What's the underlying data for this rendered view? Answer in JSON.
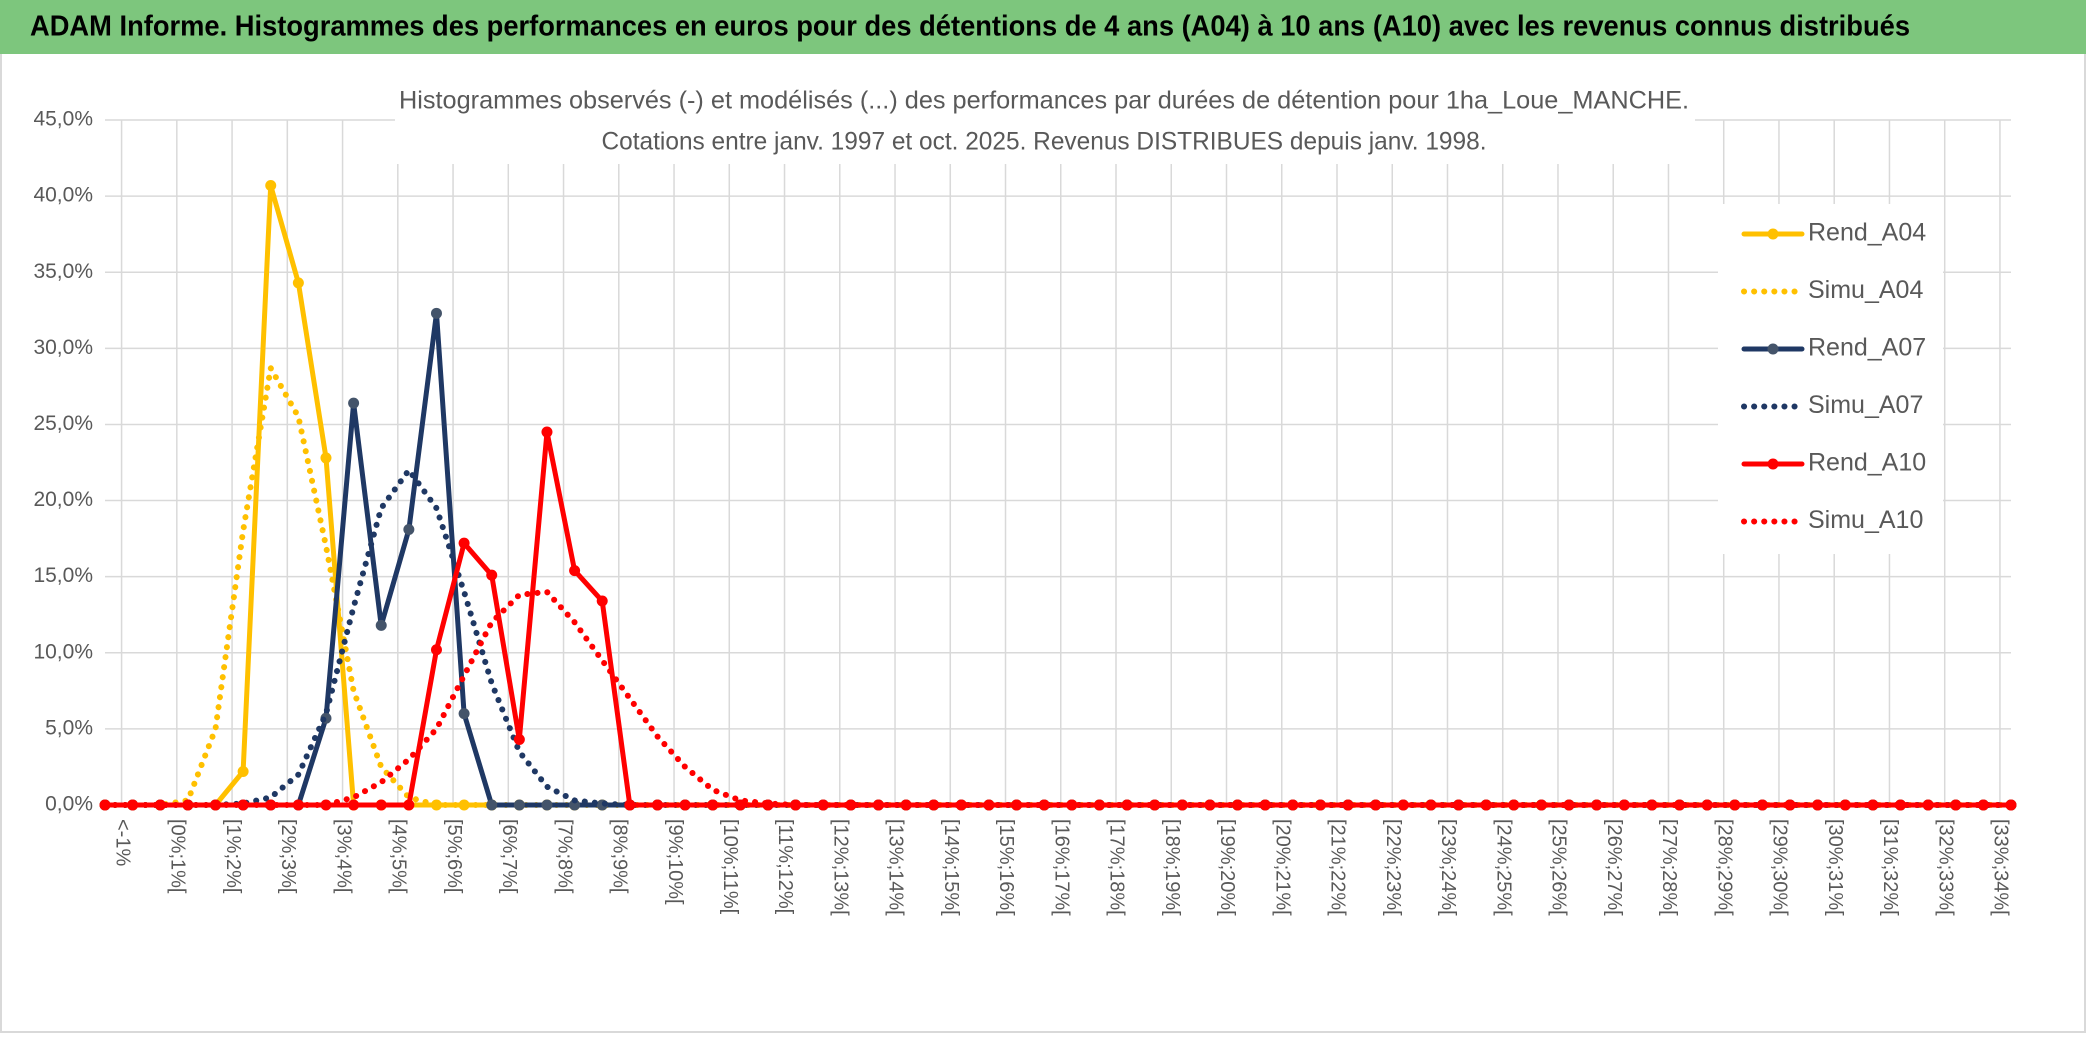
{
  "header": {
    "title": "ADAM Informe. Histogrammes des performances en euros pour des détentions de 4 ans (A04) à 10 ans (A10) avec les revenus connus distribués"
  },
  "chart_data": {
    "type": "line",
    "title": [
      "Histogrammes observés (-) et modélisés (...) des performances par durées de détention pour 1ha_Loue_MANCHE.",
      "Cotations entre janv. 1997 et oct. 2025. Revenus DISTRIBUES depuis janv. 1998."
    ],
    "categories": [
      "<-1%",
      null,
      "[0%;1%[",
      null,
      "[1%;2%[",
      null,
      "[2%;3%[",
      null,
      "[3%;4%[",
      null,
      "[4%;5%[",
      null,
      "[5%;6%[",
      null,
      "[6%;7%[",
      null,
      "[7%;8%[",
      null,
      "[8%;9%[",
      null,
      "[9%;10%[",
      null,
      "[10%;11%[",
      null,
      "[11%;12%[",
      null,
      "[12%;13%[",
      null,
      "[13%;14%[",
      null,
      "[14%;15%[",
      null,
      "[15%;16%[",
      null,
      "[16%;17%[",
      null,
      "[17%;18%[",
      null,
      "[18%;19%[",
      null,
      "[19%;20%[",
      null,
      "[20%;21%[",
      null,
      "[21%;22%[",
      null,
      "[22%;23%[",
      null,
      "[23%;24%[",
      null,
      "[24%;25%[",
      null,
      "[25%;26%[",
      null,
      "[26%;27%[",
      null,
      "[27%;28%[",
      null,
      "[28%;29%[",
      null,
      "[29%;30%[",
      null,
      "[30%;31%[",
      null,
      "[31%;32%[",
      null,
      "[32%;33%[",
      null,
      "[33%;34%[",
      null
    ],
    "series": [
      {
        "name": "Rend_A04",
        "color": "#ffc000",
        "style": "solid",
        "values": [
          0,
          0,
          0,
          0,
          0,
          2.2,
          40.7,
          34.3,
          22.8,
          0,
          0,
          0,
          0,
          0,
          0,
          0,
          0,
          0,
          0,
          0,
          0,
          0,
          0,
          0,
          0,
          0,
          0,
          0,
          0,
          0,
          0,
          0,
          0,
          0,
          0,
          0,
          0,
          0,
          0,
          0,
          0,
          0,
          0,
          0,
          0,
          0,
          0,
          0,
          0,
          0,
          0,
          0,
          0,
          0,
          0,
          0,
          0,
          0,
          0,
          0,
          0,
          0,
          0,
          0,
          0,
          0,
          0,
          0,
          0,
          0
        ]
      },
      {
        "name": "Simu_A04",
        "color": "#ffc000",
        "style": "dotted",
        "values": [
          0,
          0,
          0,
          0.3,
          5,
          18,
          28.7,
          25.5,
          17,
          7.5,
          2.5,
          0.5,
          0,
          0,
          0,
          0,
          0,
          0,
          0,
          0,
          0,
          0,
          0,
          0,
          0,
          0,
          0,
          0,
          0,
          0,
          0,
          0,
          0,
          0,
          0,
          0,
          0,
          0,
          0,
          0,
          0,
          0,
          0,
          0,
          0,
          0,
          0,
          0,
          0,
          0,
          0,
          0,
          0,
          0,
          0,
          0,
          0,
          0,
          0,
          0,
          0,
          0,
          0,
          0,
          0,
          0,
          0,
          0,
          0,
          0
        ]
      },
      {
        "name": "Rend_A07",
        "color": "#1f3864",
        "style": "solid",
        "values": [
          0,
          0,
          0,
          0,
          0,
          0,
          0,
          0,
          5.7,
          26.4,
          11.8,
          18.1,
          32.3,
          6,
          0,
          0,
          0,
          0,
          0,
          0,
          0,
          0,
          0,
          0,
          0,
          0,
          0,
          0,
          0,
          0,
          0,
          0,
          0,
          0,
          0,
          0,
          0,
          0,
          0,
          0,
          0,
          0,
          0,
          0,
          0,
          0,
          0,
          0,
          0,
          0,
          0,
          0,
          0,
          0,
          0,
          0,
          0,
          0,
          0,
          0,
          0,
          0,
          0,
          0,
          0,
          0,
          0,
          0,
          0,
          0
        ]
      },
      {
        "name": "Simu_A07",
        "color": "#1f3864",
        "style": "dotted",
        "values": [
          0,
          0,
          0,
          0,
          0,
          0.1,
          0.5,
          2,
          6,
          13,
          19.5,
          22,
          19.5,
          14,
          8,
          3.5,
          1.2,
          0.3,
          0.1,
          0,
          0,
          0,
          0,
          0,
          0,
          0,
          0,
          0,
          0,
          0,
          0,
          0,
          0,
          0,
          0,
          0,
          0,
          0,
          0,
          0,
          0,
          0,
          0,
          0,
          0,
          0,
          0,
          0,
          0,
          0,
          0,
          0,
          0,
          0,
          0,
          0,
          0,
          0,
          0,
          0,
          0,
          0,
          0,
          0,
          0,
          0,
          0,
          0,
          0,
          0
        ]
      },
      {
        "name": "Rend_A10",
        "color": "#ff0000",
        "style": "solid",
        "values": [
          0,
          0,
          0,
          0,
          0,
          0,
          0,
          0,
          0,
          0,
          0,
          0,
          10.2,
          17.2,
          15.1,
          4.3,
          24.5,
          15.4,
          13.4,
          0,
          0,
          0,
          0,
          0,
          0,
          0,
          0,
          0,
          0,
          0,
          0,
          0,
          0,
          0,
          0,
          0,
          0,
          0,
          0,
          0,
          0,
          0,
          0,
          0,
          0,
          0,
          0,
          0,
          0,
          0,
          0,
          0,
          0,
          0,
          0,
          0,
          0,
          0,
          0,
          0,
          0,
          0,
          0,
          0,
          0,
          0,
          0,
          0,
          0,
          0
        ]
      },
      {
        "name": "Simu_A10",
        "color": "#ff0000",
        "style": "dotted",
        "values": [
          0,
          0,
          0,
          0,
          0,
          0,
          0,
          0,
          0,
          0.5,
          1.5,
          3,
          5,
          8.5,
          12,
          13.8,
          14,
          12,
          9.5,
          7,
          4.5,
          2.5,
          1,
          0.3,
          0.1,
          0,
          0,
          0,
          0,
          0,
          0,
          0,
          0,
          0,
          0,
          0,
          0,
          0,
          0,
          0,
          0,
          0,
          0,
          0,
          0,
          0,
          0,
          0,
          0,
          0,
          0,
          0,
          0,
          0,
          0,
          0,
          0,
          0,
          0,
          0,
          0,
          0,
          0,
          0,
          0,
          0,
          0,
          0,
          0,
          0
        ]
      }
    ],
    "ylim": [
      0,
      45
    ],
    "yticks": [
      {
        "value": 0,
        "label": "0,0%"
      },
      {
        "value": 5,
        "label": "5,0%"
      },
      {
        "value": 10,
        "label": "10,0%"
      },
      {
        "value": 15,
        "label": "15,0%"
      },
      {
        "value": 20,
        "label": "20,0%"
      },
      {
        "value": 25,
        "label": "25,0%"
      },
      {
        "value": 30,
        "label": "30,0%"
      },
      {
        "value": 35,
        "label": "35,0%"
      },
      {
        "value": 40,
        "label": "40,0%"
      },
      {
        "value": 45,
        "label": "45,0%"
      }
    ],
    "grid": true,
    "legend": "right"
  }
}
